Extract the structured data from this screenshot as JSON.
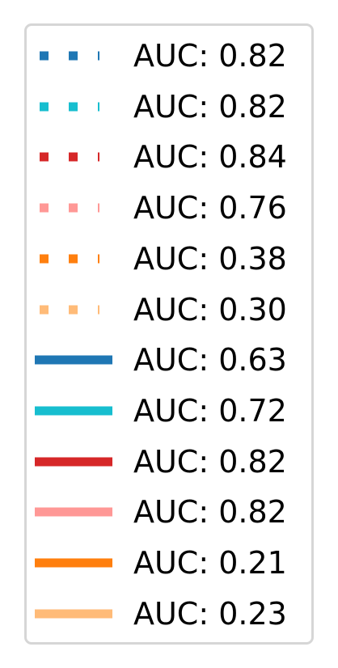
{
  "chart_data": {
    "type": "line",
    "legend_location": "right",
    "series": [
      {
        "name": "AUC: 0.82",
        "color": "#1f77b4",
        "linestyle": "dotted"
      },
      {
        "name": "AUC: 0.82",
        "color": "#17becf",
        "linestyle": "dotted"
      },
      {
        "name": "AUC: 0.84",
        "color": "#d62728",
        "linestyle": "dotted"
      },
      {
        "name": "AUC: 0.76",
        "color": "#ff9896",
        "linestyle": "dotted"
      },
      {
        "name": "AUC: 0.38",
        "color": "#ff7f0e",
        "linestyle": "dotted"
      },
      {
        "name": "AUC: 0.30",
        "color": "#ffbb78",
        "linestyle": "dotted"
      },
      {
        "name": "AUC: 0.63",
        "color": "#1f77b4",
        "linestyle": "solid"
      },
      {
        "name": "AUC: 0.72",
        "color": "#17becf",
        "linestyle": "solid"
      },
      {
        "name": "AUC: 0.82",
        "color": "#d62728",
        "linestyle": "solid"
      },
      {
        "name": "AUC: 0.82",
        "color": "#ff9896",
        "linestyle": "solid"
      },
      {
        "name": "AUC: 0.21",
        "color": "#ff7f0e",
        "linestyle": "solid"
      },
      {
        "name": "AUC: 0.23",
        "color": "#ffbb78",
        "linestyle": "solid"
      }
    ]
  }
}
